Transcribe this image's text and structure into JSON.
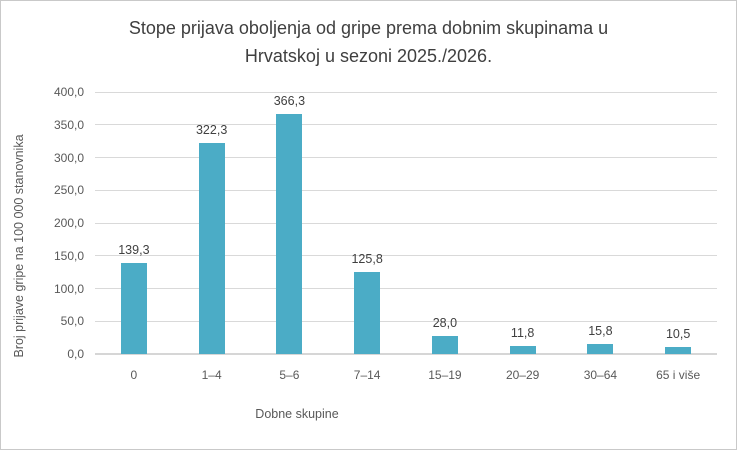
{
  "title_lines": [
    "Stope prijava oboljenja od gripe prema dobnim skupinama u",
    "Hrvatskoj u sezoni 2025./2026."
  ],
  "chart_data": {
    "type": "bar",
    "title": "Stope prijava oboljenja od gripe prema dobnim skupinama u Hrvatskoj u sezoni 2025./2026.",
    "categories": [
      "0",
      "1–4",
      "5–6",
      "7–14",
      "15–19",
      "20–29",
      "30–64",
      "65 i više"
    ],
    "values": [
      139.3,
      322.3,
      366.3,
      125.8,
      28.0,
      11.8,
      15.8,
      10.5
    ],
    "value_labels": [
      "139,3",
      "322,3",
      "366,3",
      "125,8",
      "28,0",
      "11,8",
      "15,8",
      "10,5"
    ],
    "xlabel": "Dobne skupine",
    "ylabel": "Broj prijave gripe na 100 000 stanovnika",
    "ylim": [
      0,
      400
    ],
    "ytick_step": 50,
    "ytick_labels": [
      "0,0",
      "50,0",
      "100,0",
      "150,0",
      "200,0",
      "250,0",
      "300,0",
      "350,0",
      "400,0"
    ],
    "grid": true,
    "legend": "none",
    "bar_color": "#4BACC6",
    "gridline_color": "#d9d9d9"
  }
}
